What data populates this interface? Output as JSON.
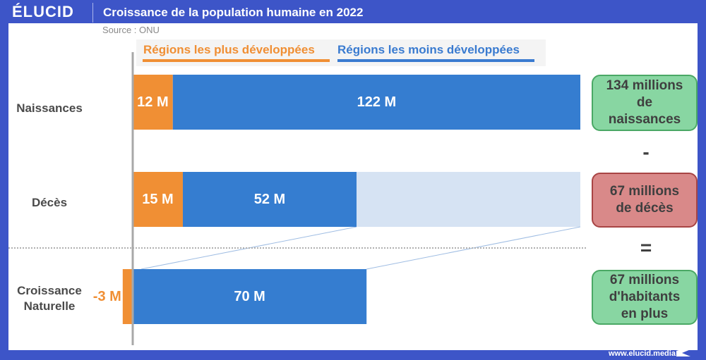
{
  "header": {
    "logo": "ÉLUCID",
    "title": "Croissance de la population humaine en 2022",
    "source": "Source : ONU"
  },
  "colors": {
    "frame": "#3d55c8",
    "developed": "#f08f34",
    "less_developed": "#357dd0",
    "remainder": "#d6e3f3",
    "green_box": "#88d6a2",
    "red_box": "#d98989"
  },
  "chart_data": {
    "type": "bar",
    "orientation": "horizontal",
    "stacked": true,
    "title": "Croissance de la population humaine en 2022",
    "unit": "M",
    "categories": [
      "Naissances",
      "Décès",
      "Croissance Naturelle"
    ],
    "category_labels": [
      [
        "Naissances"
      ],
      [
        "Décès"
      ],
      [
        "Croissance",
        "Naturelle"
      ]
    ],
    "series": [
      {
        "name": "Régions les plus développées",
        "values": [
          12,
          15,
          -3
        ],
        "labels": [
          "12 M",
          "15 M",
          "-3 M"
        ]
      },
      {
        "name": "Régions les moins développées",
        "values": [
          122,
          52,
          70
        ],
        "labels": [
          "122 M",
          "52 M",
          "70 M"
        ]
      }
    ],
    "legend": [
      "Régions les plus développées",
      "Régions les moins développées"
    ],
    "legend_position": "top",
    "xlim": [
      -3,
      134
    ],
    "reference_total": 134
  },
  "summary": {
    "births": [
      "134 millions",
      "de",
      "naissances"
    ],
    "minus": "-",
    "deaths": [
      "67 millions",
      "de décès"
    ],
    "equals": "=",
    "growth": [
      "67 millions",
      "d'habitants",
      "en plus"
    ]
  },
  "footer": {
    "url": "www.elucid.media"
  }
}
